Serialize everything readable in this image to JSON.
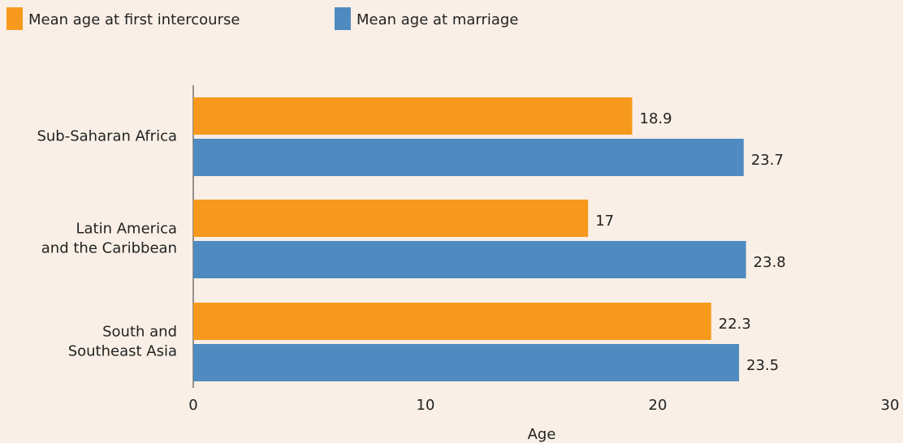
{
  "chart_data": {
    "type": "bar",
    "orientation": "horizontal",
    "categories": [
      "Sub-Saharan Africa",
      "Latin America\nand the Caribbean",
      "South and\nSoutheast Asia"
    ],
    "series": [
      {
        "name": "Mean age at first intercourse",
        "color": "#f7991c",
        "values": [
          18.9,
          17,
          22.3
        ]
      },
      {
        "name": "Mean age at marriage",
        "color": "#4f8bc0",
        "values": [
          23.7,
          23.8,
          23.5
        ]
      }
    ],
    "xlim": [
      0,
      30
    ],
    "xticks": [
      0,
      10,
      20,
      30
    ],
    "xlabel": "Age",
    "legend": "top-left"
  }
}
